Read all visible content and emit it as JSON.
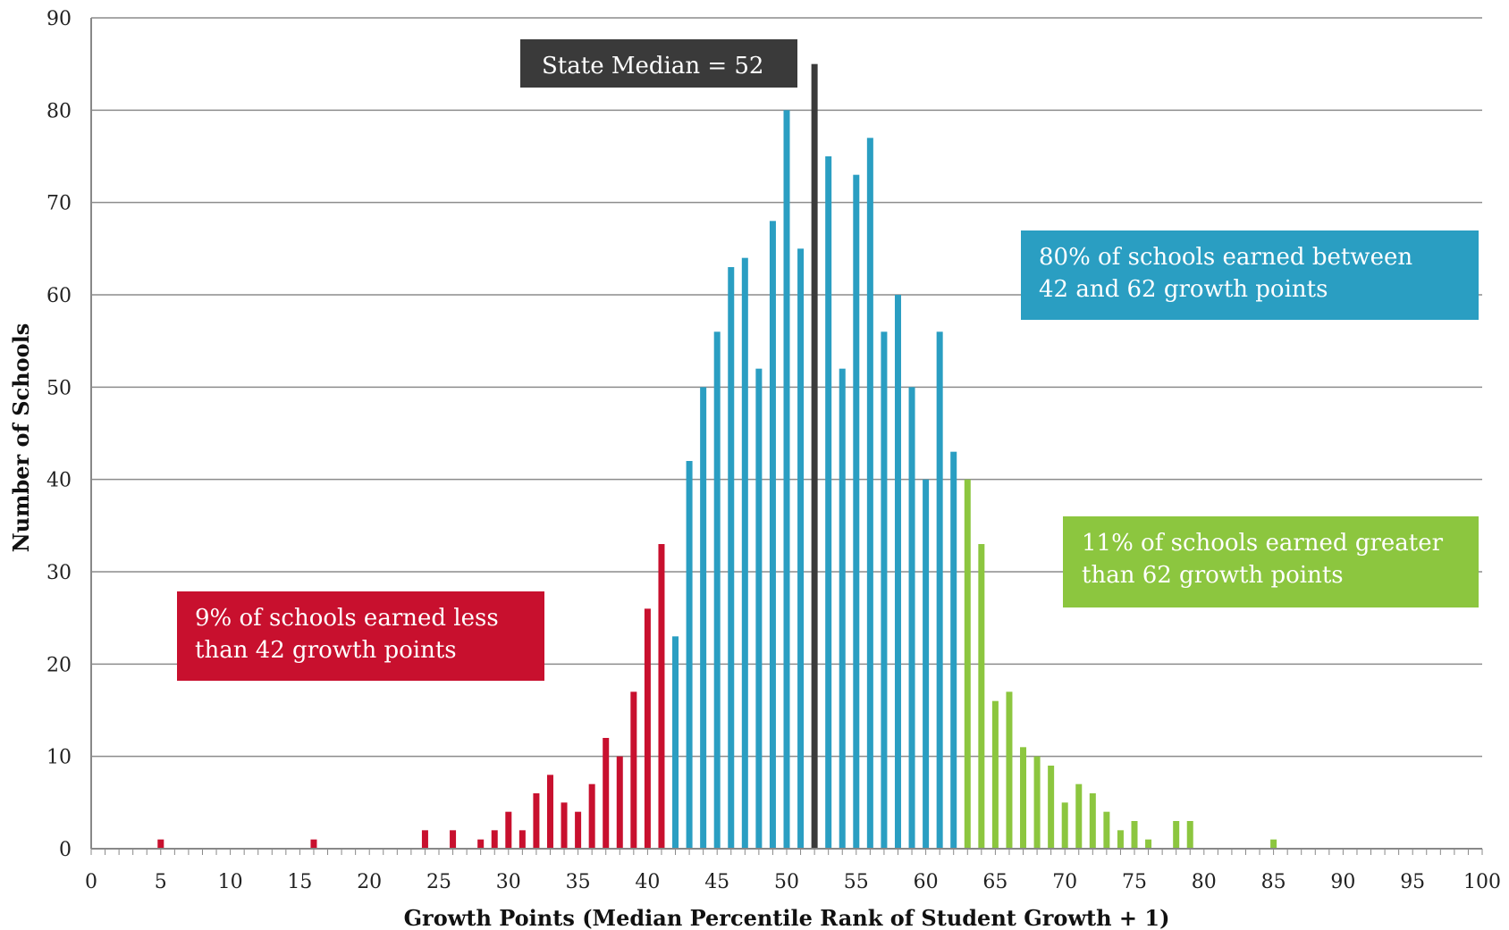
{
  "chart_data": {
    "type": "bar",
    "title": "",
    "xlabel": "Growth Points (Median Percentile Rank of Student Growth + 1)",
    "ylabel": "Number of Schools",
    "xlim": [
      0,
      100
    ],
    "ylim": [
      0,
      90
    ],
    "x_ticks": [
      0,
      5,
      10,
      15,
      20,
      25,
      30,
      35,
      40,
      45,
      50,
      55,
      60,
      65,
      70,
      75,
      80,
      85,
      90,
      95,
      100
    ],
    "y_ticks": [
      0,
      10,
      20,
      30,
      40,
      50,
      60,
      70,
      80,
      90
    ],
    "grid": true,
    "colors": {
      "red": "#c8102e",
      "blue": "#2a9ec2",
      "dark": "#3a3a3a",
      "green": "#8cc63f"
    },
    "series": [
      {
        "color_key": "red",
        "x": [
          5,
          16,
          24,
          26,
          28,
          29,
          30,
          31,
          32,
          33,
          34,
          35,
          36,
          37,
          38,
          39,
          40,
          41
        ],
        "values": [
          1,
          1,
          2,
          2,
          1,
          2,
          4,
          2,
          6,
          8,
          5,
          4,
          7,
          12,
          10,
          17,
          26,
          33
        ]
      },
      {
        "color_key": "blue",
        "x": [
          42,
          43,
          44,
          45,
          46,
          47,
          48,
          49,
          50,
          51,
          53,
          54,
          55,
          56,
          57,
          58,
          59,
          60,
          61,
          62
        ],
        "values": [
          23,
          42,
          50,
          56,
          63,
          64,
          52,
          68,
          80,
          65,
          75,
          52,
          73,
          77,
          56,
          60,
          50,
          40,
          56,
          43
        ]
      },
      {
        "color_key": "dark",
        "x": [
          52
        ],
        "values": [
          85
        ]
      },
      {
        "color_key": "green",
        "x": [
          63,
          64,
          65,
          66,
          67,
          68,
          69,
          70,
          71,
          72,
          73,
          74,
          75,
          76,
          78,
          79,
          85
        ],
        "values": [
          40,
          33,
          16,
          17,
          11,
          10,
          9,
          5,
          7,
          6,
          4,
          2,
          3,
          1,
          3,
          3,
          1
        ]
      }
    ],
    "annotations": [
      {
        "color_key": "dark",
        "lines": [
          "State Median = 52"
        ]
      },
      {
        "color_key": "blue",
        "lines": [
          "80% of schools earned between",
          "42 and 62  growth points"
        ]
      },
      {
        "color_key": "green",
        "lines": [
          "11% of schools earned greater",
          "than 62 growth points"
        ]
      },
      {
        "color_key": "red",
        "lines": [
          "9% of schools earned less",
          "than 42 growth points"
        ]
      }
    ]
  }
}
